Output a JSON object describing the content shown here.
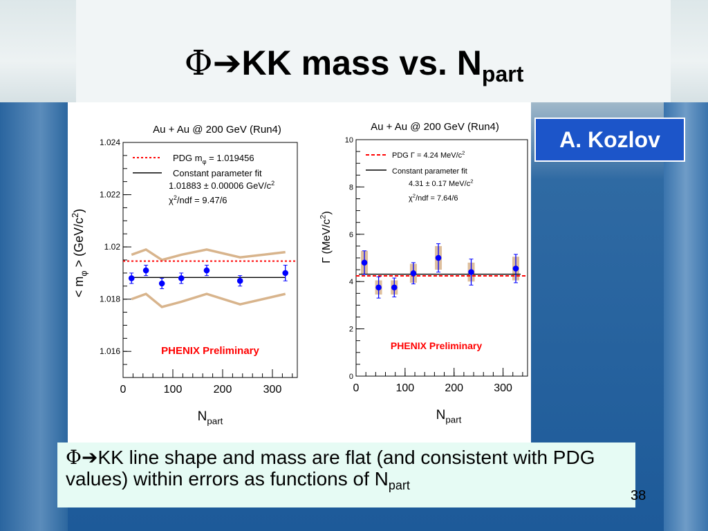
{
  "slide": {
    "title_phi": "Φ",
    "title_arrow": "➔",
    "title_main": "KK mass vs. N",
    "title_sub": "part",
    "author": "A. Kozlov",
    "caption_phi": "Φ",
    "caption_arrow": "➔",
    "caption_text": "KK line shape and mass are flat (and consistent with PDG values) within errors as functions of N",
    "caption_sub": "part",
    "page_number": "38"
  },
  "colors": {
    "data_points": "#0000ff",
    "pdg_line": "#ff0000",
    "fit_line": "#000000",
    "systematic_band": "#d8b48c",
    "preliminary_label": "#ff0000",
    "author_box": "#1c55c9",
    "caption_box": "#e6fbf4"
  },
  "chart_data": [
    {
      "type": "scatter",
      "title": "Au + Au @ 200 GeV (Run4)",
      "xlabel": "N_part",
      "ylabel": "< m_φ > (GeV/c²)",
      "xlim": [
        0,
        350
      ],
      "ylim": [
        1.015,
        1.024
      ],
      "x_ticks": [
        "0",
        "100",
        "200",
        "300"
      ],
      "y_ticks": [
        "1.016",
        "1.018",
        "1.02",
        "1.022",
        "1.024"
      ],
      "legend": [
        {
          "style": "red-dotted",
          "label": "PDG m_φ = 1.019456"
        },
        {
          "style": "black-solid",
          "label": "Constant parameter fit"
        }
      ],
      "legend_fit_value": "1.01883 ± 0.00006 GeV/c²",
      "legend_chi2": "χ²/ndf = 9.47/6",
      "pdg_value": 1.019456,
      "fit_value": 1.01883,
      "annotation": "PHENIX Preliminary",
      "x": [
        17,
        46,
        78,
        117,
        168,
        235,
        326
      ],
      "y": [
        1.0188,
        1.0191,
        1.0186,
        1.0188,
        1.0191,
        1.0187,
        1.019
      ],
      "y_err": [
        0.0002,
        0.0002,
        0.0002,
        0.0002,
        0.0002,
        0.0002,
        0.0003
      ],
      "sys_band_upper": [
        1.0197,
        1.0199,
        1.0195,
        1.0197,
        1.0199,
        1.0196,
        1.0198
      ],
      "sys_band_lower": [
        1.018,
        1.0182,
        1.0177,
        1.0179,
        1.0182,
        1.0178,
        1.0182
      ]
    },
    {
      "type": "scatter",
      "title": "Au + Au @ 200 GeV (Run4)",
      "xlabel": "N_part",
      "ylabel": "Γ (MeV/c²)",
      "xlim": [
        0,
        350
      ],
      "ylim": [
        0,
        10
      ],
      "x_ticks": [
        "0",
        "100",
        "200",
        "300"
      ],
      "y_ticks": [
        "0",
        "2",
        "4",
        "6",
        "8",
        "10"
      ],
      "legend": [
        {
          "style": "red-dashed",
          "label": "PDG  Γ = 4.24 MeV/c²"
        },
        {
          "style": "black-solid",
          "label": "Constant parameter fit"
        }
      ],
      "legend_fit_value": "4.31 ± 0.17 MeV/c²",
      "legend_chi2": "χ²/ndf = 7.64/6",
      "pdg_value": 4.24,
      "fit_value": 4.31,
      "annotation": "PHENIX Preliminary",
      "x": [
        17,
        46,
        78,
        117,
        168,
        235,
        326
      ],
      "y": [
        4.8,
        3.75,
        3.75,
        4.35,
        5.0,
        4.4,
        4.55
      ],
      "y_err": [
        0.5,
        0.45,
        0.4,
        0.45,
        0.6,
        0.55,
        0.6
      ],
      "sys_err": [
        0.5,
        0.3,
        0.3,
        0.4,
        0.5,
        0.4,
        0.5
      ]
    }
  ]
}
